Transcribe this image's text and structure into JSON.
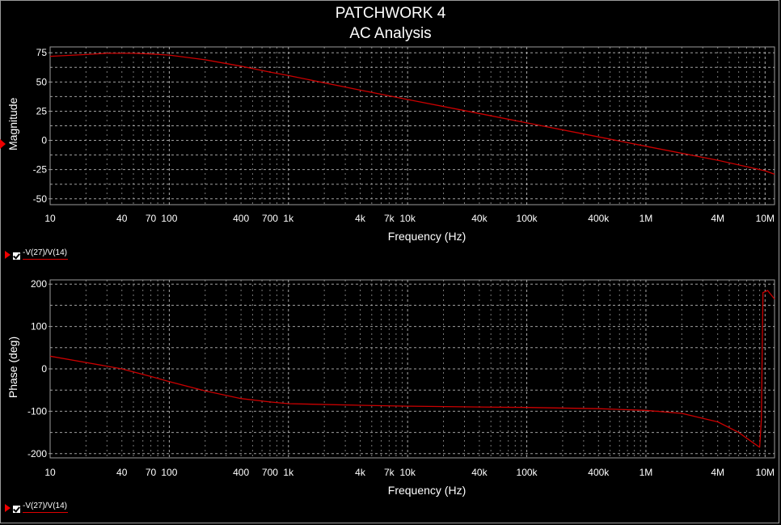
{
  "title": "PATCHWORK 4",
  "subtitle": "AC Analysis",
  "colors": {
    "background": "#000000",
    "trace": "#cc0000",
    "grid": "#bbbbbb",
    "text": "#ffffff"
  },
  "chart_data": [
    {
      "type": "line",
      "xlabel": "Frequency (Hz)",
      "ylabel": "Magnitude",
      "xscale": "log",
      "xlim": [
        10,
        12000000
      ],
      "ylim": [
        -55,
        80
      ],
      "x_ticks": [
        "10",
        "40",
        "70",
        "100",
        "400",
        "700",
        "1k",
        "4k",
        "7k",
        "10k",
        "40k",
        "100k",
        "400k",
        "1M",
        "4M",
        "10M"
      ],
      "y_ticks": [
        "75",
        "50",
        "25",
        "0",
        "-25",
        "-50"
      ],
      "grid": true,
      "legend": "bottom-left",
      "series": [
        {
          "name": "-V(27)/V(14)",
          "x": [
            10,
            20,
            30,
            50,
            70,
            100,
            200,
            400,
            700,
            1000,
            4000,
            10000,
            40000,
            100000,
            400000,
            1000000,
            4000000,
            10000000,
            12000000
          ],
          "y": [
            72,
            73.5,
            74.5,
            74.5,
            74,
            73,
            69,
            63.5,
            58.5,
            55.5,
            43,
            35,
            23,
            15,
            3,
            -5,
            -17,
            -26,
            -29
          ]
        }
      ]
    },
    {
      "type": "line",
      "xlabel": "Frequency (Hz)",
      "ylabel": "Phase (deg)",
      "xscale": "log",
      "xlim": [
        10,
        12000000
      ],
      "ylim": [
        -210,
        210
      ],
      "x_ticks": [
        "10",
        "40",
        "70",
        "100",
        "400",
        "700",
        "1k",
        "4k",
        "7k",
        "10k",
        "40k",
        "100k",
        "400k",
        "1M",
        "4M",
        "10M"
      ],
      "y_ticks": [
        "200",
        "100",
        "0",
        "-100",
        "-200"
      ],
      "grid": true,
      "legend": "bottom-left",
      "series": [
        {
          "name": "-V(27)/V(14)",
          "x": [
            10,
            20,
            40,
            70,
            100,
            200,
            400,
            700,
            1000,
            4000,
            10000,
            40000,
            100000,
            400000,
            1000000,
            2000000,
            4000000,
            6000000,
            8000000,
            9000000,
            9300000,
            9600000,
            10500000,
            12000000
          ],
          "y": [
            30,
            15,
            0,
            -18,
            -30,
            -52,
            -70,
            -78,
            -82,
            -86,
            -88,
            -90,
            -91,
            -94,
            -98,
            -105,
            -125,
            -150,
            -175,
            -185,
            -120,
            180,
            185,
            165
          ]
        }
      ]
    }
  ]
}
